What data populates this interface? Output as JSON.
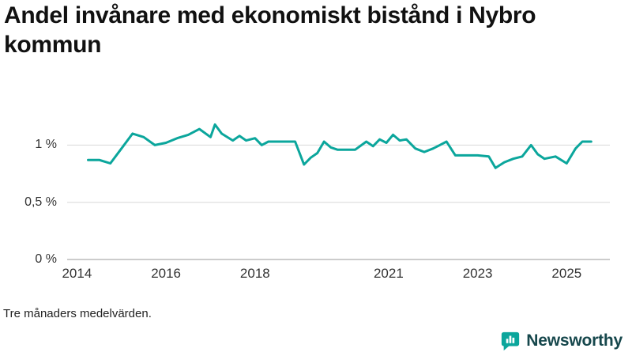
{
  "page": {
    "title": "Andel invånare med ekonomiskt bistånd i Nybro kommun",
    "footnote": "Tre månaders medelvärden."
  },
  "brand": {
    "name": "Newsworthy",
    "logo_icon": "bar-chart-speech-bubble",
    "accent_color": "#0ba69c",
    "text_color": "#16474c"
  },
  "colors": {
    "line": "#0ba69c",
    "grid": "#d8d8d8",
    "axis": "#9a9a9a",
    "tick_text": "#333333",
    "title_text": "#111111"
  },
  "chart_data": {
    "type": "line",
    "title": "Andel invånare med ekonomiskt bistånd i Nybro kommun",
    "footnote": "Tre månaders medelvärden.",
    "series_name": "Andel invånare med ekonomiskt bistånd (%)",
    "unit": "%",
    "grid": "horizontal",
    "legend": "none",
    "xlim": [
      2013.78,
      2025.97
    ],
    "ylim": [
      0,
      1.3
    ],
    "yticks": [
      {
        "value": 0,
        "label": "0 %"
      },
      {
        "value": 0.5,
        "label": "0,5 %"
      },
      {
        "value": 1,
        "label": "1 %"
      }
    ],
    "xticks": [
      {
        "value": 2014,
        "label": "2014"
      },
      {
        "value": 2016,
        "label": "2016"
      },
      {
        "value": 2018,
        "label": "2018"
      },
      {
        "value": 2021,
        "label": "2021"
      },
      {
        "value": 2023,
        "label": "2023"
      },
      {
        "value": 2025,
        "label": "2025"
      }
    ],
    "x": [
      2014.25,
      2014.5,
      2014.75,
      2015.0,
      2015.25,
      2015.5,
      2015.75,
      2016.0,
      2016.25,
      2016.5,
      2016.75,
      2017.0,
      2017.1,
      2017.25,
      2017.5,
      2017.65,
      2017.8,
      2018.0,
      2018.15,
      2018.3,
      2018.5,
      2018.75,
      2018.9,
      2019.1,
      2019.25,
      2019.4,
      2019.55,
      2019.7,
      2019.85,
      2020.0,
      2020.25,
      2020.5,
      2020.65,
      2020.8,
      2020.95,
      2021.1,
      2021.25,
      2021.4,
      2021.6,
      2021.8,
      2022.0,
      2022.15,
      2022.3,
      2022.5,
      2022.75,
      2023.0,
      2023.25,
      2023.4,
      2023.6,
      2023.8,
      2024.0,
      2024.2,
      2024.35,
      2024.5,
      2024.75,
      2025.0,
      2025.2,
      2025.35,
      2025.55
    ],
    "values": [
      0.87,
      0.87,
      0.84,
      0.97,
      1.1,
      1.07,
      1.0,
      1.02,
      1.06,
      1.09,
      1.14,
      1.07,
      1.18,
      1.1,
      1.04,
      1.08,
      1.04,
      1.06,
      1.0,
      1.03,
      1.03,
      1.03,
      1.03,
      0.83,
      0.89,
      0.93,
      1.03,
      0.98,
      0.96,
      0.96,
      0.96,
      1.03,
      0.99,
      1.05,
      1.02,
      1.09,
      1.04,
      1.05,
      0.97,
      0.94,
      0.97,
      1.0,
      1.03,
      0.91,
      0.91,
      0.91,
      0.9,
      0.8,
      0.85,
      0.88,
      0.9,
      1.0,
      0.92,
      0.88,
      0.9,
      0.84,
      0.97,
      1.03,
      1.03
    ]
  }
}
